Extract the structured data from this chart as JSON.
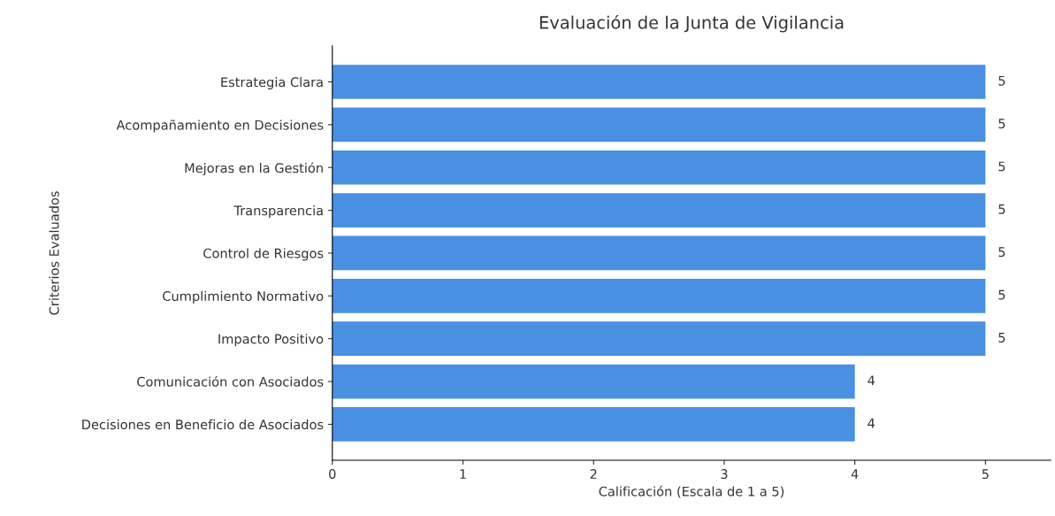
{
  "chart_data": {
    "type": "bar",
    "orientation": "horizontal",
    "title": "Evaluación de la Junta de Vigilancia",
    "xlabel": "Calificación (Escala de 1 a 5)",
    "ylabel": "Criterios Evaluados",
    "categories": [
      "Estrategia Clara",
      "Acompañamiento en Decisiones",
      "Mejoras en la Gestión",
      "Transparencia",
      "Control de Riesgos",
      "Cumplimiento Normativo",
      "Impacto Positivo",
      "Comunicación con Asociados",
      "Decisiones en Beneficio de Asociados"
    ],
    "values": [
      5,
      5,
      5,
      5,
      5,
      5,
      5,
      4,
      4
    ],
    "color": "#4a90e2",
    "xlim": [
      0,
      5.5
    ],
    "xticks": [
      0,
      1,
      2,
      3,
      4,
      5
    ],
    "data_labels": true
  }
}
